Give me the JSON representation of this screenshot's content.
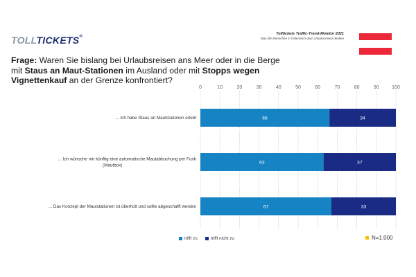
{
  "header": {
    "logo_part1": "TOLL",
    "logo_part2": "TICKETS",
    "logo_reg": "®",
    "brand_title": "Tolltickets  Traffic-Trend-Monitor 2021",
    "brand_subtitle": "Was die Menschen in Österreich über Urlaubsreisen denken"
  },
  "question": {
    "prefix": "Frage:",
    "t1": " Waren Sie bislang bei Urlaubsreisen ans Meer oder in die Berge mit ",
    "b1": "Staus an Maut-Stationen",
    "t2": " im Ausland oder mit ",
    "b2": "Stopps wegen Vignettenkauf",
    "t3": " an der Grenze konfrontiert?"
  },
  "colors": {
    "trifft_zu": "#1583c4",
    "trifft_nicht_zu": "#1a2b86",
    "n_marker": "#f2c300",
    "flag_red": "#ed2939"
  },
  "chart_data": {
    "type": "bar",
    "orientation": "horizontal",
    "stacked": true,
    "categories": [
      "... Ich habe Staus an Mautstationen erlebt",
      "... Ich wünsche mir künftig eine automatische Mautabbuchung per Funk (Mautbox)",
      "... Das Konzept der Mautstationen ist überholt und sollte abgeschafft werden"
    ],
    "category_lines": [
      [
        "... Ich habe Staus an Mautstationen erlebt"
      ],
      [
        "... Ich wünsche mir künftig eine automatische Mautabbuchung per Funk",
        "(Mautbox)"
      ],
      [
        "... Das Konzept der Mautstationen ist überholt und sollte abgeschafft werden"
      ]
    ],
    "series": [
      {
        "name": "trifft zu",
        "values": [
          66,
          63,
          67
        ]
      },
      {
        "name": "trifft nicht zu",
        "values": [
          34,
          37,
          33
        ]
      }
    ],
    "xlim": [
      0,
      100
    ],
    "xticks": [
      0,
      10,
      20,
      30,
      40,
      50,
      60,
      70,
      80,
      90,
      100
    ],
    "grid": true,
    "legend_position": "bottom",
    "note": "N=1.000"
  }
}
